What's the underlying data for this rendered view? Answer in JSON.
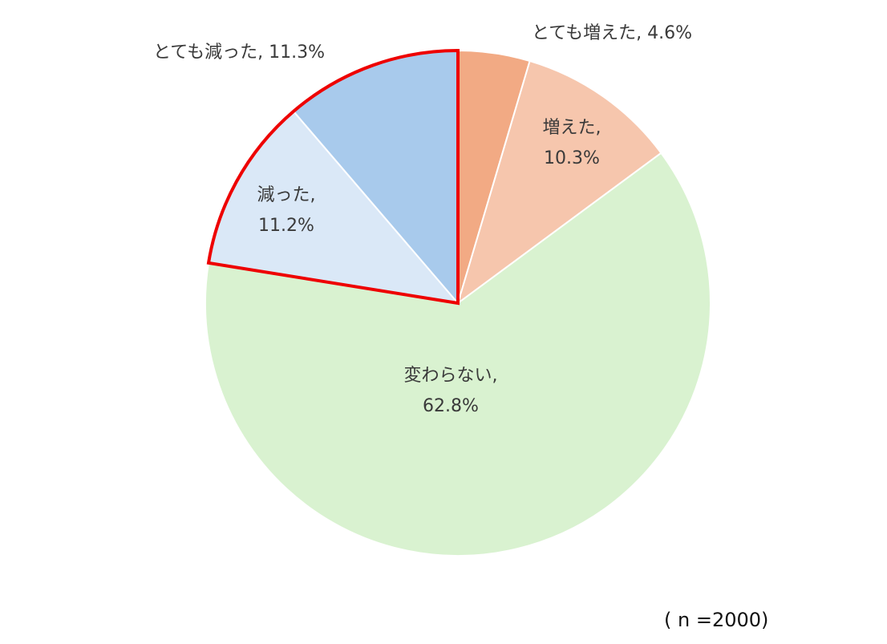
{
  "chart_data": {
    "type": "pie",
    "start_angle_deg": 0,
    "direction": "clockwise",
    "slices": [
      {
        "label": "とても増えた",
        "value": 4.6,
        "display": "4.6%",
        "color": "#f2aa84"
      },
      {
        "label": "増えた",
        "value": 10.3,
        "display": "10.3%",
        "color": "#f6c6ad"
      },
      {
        "label": "変わらない",
        "value": 62.8,
        "display": "62.8%",
        "color": "#d9f2d0"
      },
      {
        "label": "減った",
        "value": 11.2,
        "display": "11.2%",
        "color": "#dae8f7"
      },
      {
        "label": "とても減った",
        "value": 11.3,
        "display": "11.3%",
        "color": "#a8caec"
      }
    ],
    "slice_border_color": "#ffffff",
    "highlight": {
      "slices": [
        "減った",
        "とても減った"
      ],
      "outline_color": "#ee0000"
    },
    "legend": "none"
  },
  "note": "( n =2000)"
}
